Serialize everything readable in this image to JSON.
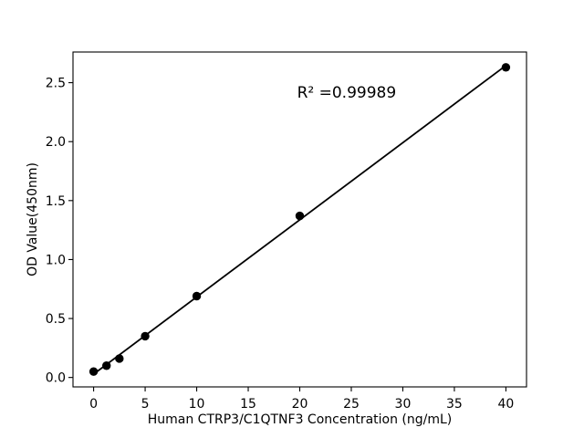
{
  "figure": {
    "background": "#ffffff"
  },
  "chart_data": {
    "type": "scatter",
    "title": "",
    "xlabel": "Human CTRP3/C1QTNF3 Concentration (ng/mL)",
    "ylabel": "OD Value(450nm)",
    "x": [
      0,
      1.25,
      2.5,
      5,
      10,
      20,
      40
    ],
    "y": [
      0.05,
      0.1,
      0.16,
      0.35,
      0.69,
      1.37,
      2.63
    ],
    "fit_line": true,
    "annotation": {
      "text": "R² =0.99989",
      "x": 24.55,
      "y": 2.42
    },
    "xlim": [
      -2,
      42
    ],
    "ylim": [
      -0.08,
      2.76
    ],
    "xtick_values": [
      0,
      5,
      10,
      15,
      20,
      25,
      30,
      35,
      40
    ],
    "xtick_labels": [
      "0",
      "5",
      "10",
      "15",
      "20",
      "25",
      "30",
      "35",
      "40"
    ],
    "ytick_values": [
      0.0,
      0.5,
      1.0,
      1.5,
      2.0,
      2.5
    ],
    "ytick_labels": [
      "0.0",
      "0.5",
      "1.0",
      "1.5",
      "2.0",
      "2.5"
    ],
    "grid": false,
    "legend": "none",
    "colors": {
      "line": "#000000",
      "marker": "#000000",
      "axis": "#000000",
      "text": "#000000",
      "background": "#ffffff"
    }
  }
}
